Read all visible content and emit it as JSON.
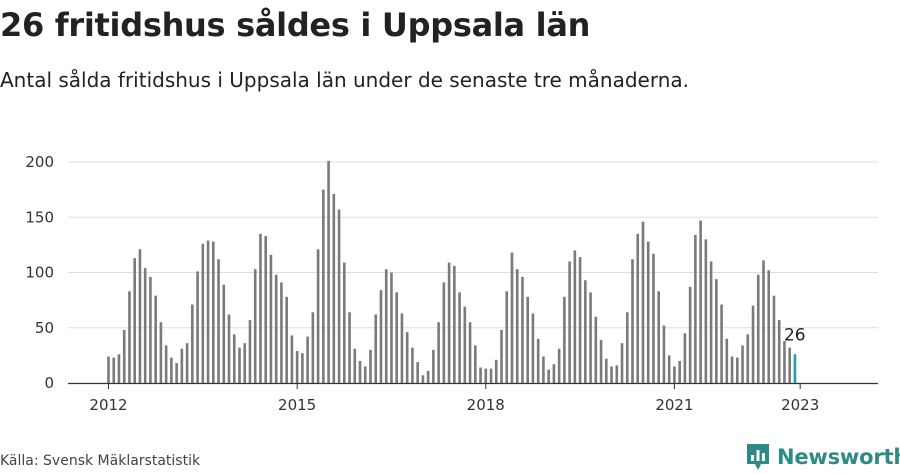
{
  "header": {
    "title": "26 fritidshus såldes i Uppsala län",
    "subtitle": "Antal sålda fritidshus i Uppsala län under de senaste tre månaderna."
  },
  "footer": {
    "source": "Källa: Svensk Mäklarstatistik",
    "brand": "Newsworthy",
    "brand_icon": "newsworthy-logo-icon"
  },
  "colors": {
    "bar": "#7a7a7a",
    "highlight": "#1aa3a3",
    "grid": "#dddddd",
    "axis": "#333333",
    "brand": "#2e8a86"
  },
  "chart_data": {
    "type": "bar",
    "x_unit": "month (rolling three-month total)",
    "x_start": "2012-01",
    "ylim": [
      0,
      200
    ],
    "yticks": [
      0,
      50,
      100,
      150,
      200
    ],
    "xticks": [
      "2012",
      "2015",
      "2018",
      "2021",
      "2023"
    ],
    "grid": true,
    "highlight_last": true,
    "last_value_label": "26",
    "values": [
      24,
      23,
      26,
      48,
      83,
      113,
      121,
      104,
      96,
      79,
      55,
      34,
      23,
      18,
      31,
      36,
      71,
      101,
      126,
      129,
      128,
      112,
      89,
      62,
      44,
      32,
      36,
      57,
      103,
      135,
      133,
      116,
      98,
      91,
      78,
      43,
      29,
      27,
      42,
      64,
      121,
      175,
      201,
      171,
      157,
      109,
      64,
      31,
      20,
      15,
      30,
      62,
      84,
      103,
      100,
      82,
      63,
      46,
      32,
      19,
      7,
      11,
      30,
      55,
      91,
      109,
      106,
      82,
      69,
      55,
      34,
      14,
      13,
      13,
      21,
      48,
      83,
      118,
      103,
      96,
      78,
      63,
      40,
      24,
      12,
      17,
      31,
      78,
      110,
      120,
      114,
      93,
      82,
      60,
      39,
      22,
      15,
      16,
      36,
      64,
      112,
      135,
      146,
      128,
      117,
      83,
      52,
      25,
      15,
      20,
      45,
      87,
      134,
      147,
      130,
      110,
      94,
      71,
      40,
      24,
      23,
      34,
      44,
      70,
      98,
      111,
      102,
      79,
      57,
      38,
      32,
      26
    ]
  }
}
